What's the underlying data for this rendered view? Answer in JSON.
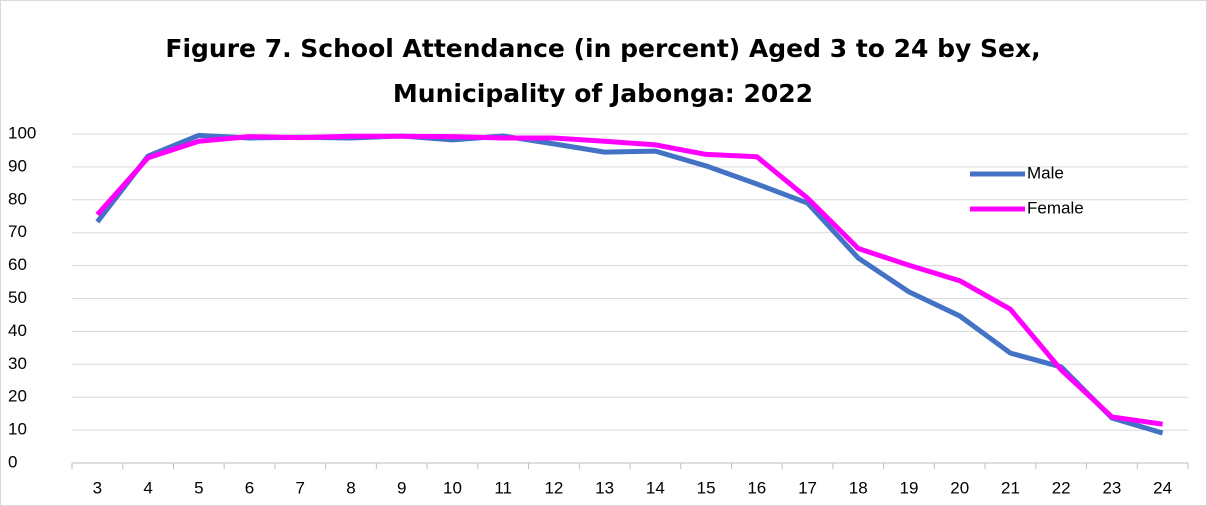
{
  "chart_data": {
    "type": "line",
    "title": [
      "Figure 7. School Attendance (in percent) Aged 3 to 24 by Sex,",
      "Municipality of Jabonga: 2022"
    ],
    "categories": [
      "3",
      "4",
      "5",
      "6",
      "7",
      "8",
      "9",
      "10",
      "11",
      "12",
      "13",
      "14",
      "15",
      "16",
      "17",
      "18",
      "19",
      "20",
      "21",
      "22",
      "23",
      "24"
    ],
    "series": [
      {
        "name": "Male",
        "color": "#4472c4",
        "values": [
          73.3,
          93.3,
          99.6,
          98.8,
          99,
          98.8,
          99.4,
          98.2,
          99.4,
          97,
          94.5,
          94.8,
          90.3,
          84.8,
          79,
          62.3,
          52,
          44.7,
          33.4,
          29.2,
          13.7,
          9.1
        ]
      },
      {
        "name": "Female",
        "color": "#ff00ff",
        "values": [
          75.5,
          92.8,
          97.8,
          99.2,
          98.9,
          99.3,
          99.3,
          99.2,
          98.8,
          98.8,
          97.8,
          96.7,
          93.8,
          93.1,
          80.5,
          65.2,
          60.1,
          55.4,
          46.7,
          28.3,
          14,
          11.8
        ]
      }
    ],
    "ylim": [
      0,
      100
    ],
    "yticks": [
      0,
      10,
      20,
      30,
      40,
      50,
      60,
      70,
      80,
      90,
      100
    ],
    "grid": true,
    "legend": "right"
  }
}
